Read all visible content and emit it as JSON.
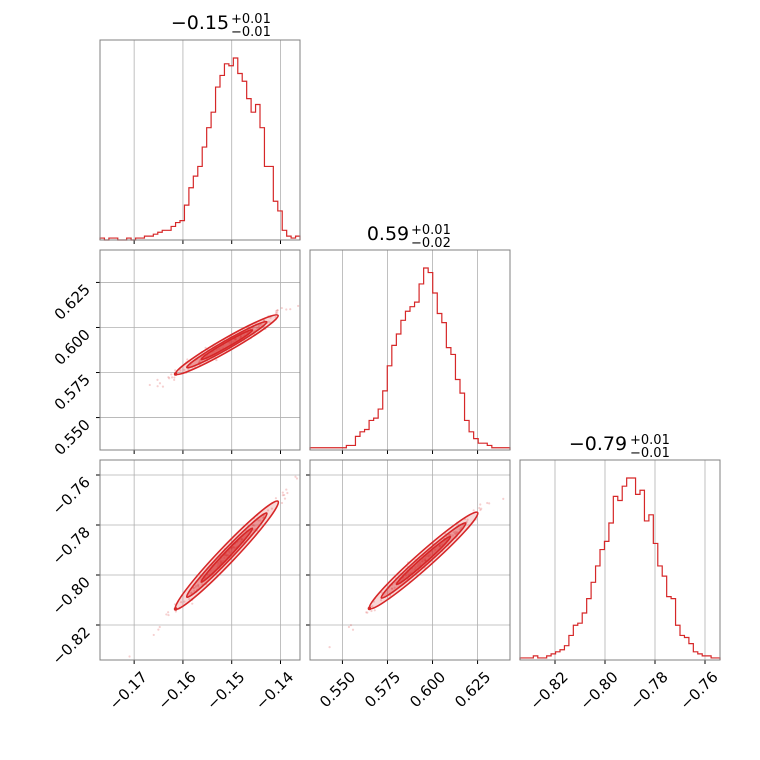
{
  "chart_data": {
    "type": "corner",
    "color": "#d62728",
    "parameters": [
      {
        "index": 0,
        "range": [
          -0.177,
          -0.136
        ],
        "ticks": [
          "-0.17",
          "-0.16",
          "-0.15",
          "-0.14"
        ],
        "tick_values": [
          -0.17,
          -0.16,
          -0.15,
          -0.14
        ],
        "title": {
          "median": "−0.15",
          "plus": "+0.01",
          "minus": "−0.01"
        }
      },
      {
        "index": 1,
        "range": [
          0.532,
          0.643
        ],
        "ticks": [
          "0.550",
          "0.575",
          "0.600",
          "0.625"
        ],
        "tick_values": [
          0.55,
          0.575,
          0.6,
          0.625
        ],
        "title": {
          "median": "0.59",
          "plus": "+0.01",
          "minus": "−0.02"
        }
      },
      {
        "index": 2,
        "range": [
          -0.834,
          -0.754
        ],
        "ticks": [
          "-0.82",
          "-0.80",
          "-0.78",
          "-0.76"
        ],
        "tick_values": [
          -0.82,
          -0.8,
          -0.78,
          -0.76
        ],
        "title": {
          "median": "−0.79",
          "plus": "+0.01",
          "minus": "−0.01"
        }
      }
    ],
    "tick_text": {
      "p0": [
        "−0.17",
        "−0.16",
        "−0.15",
        "−0.14"
      ],
      "p1": [
        "0.550",
        "0.575",
        "0.600",
        "0.625"
      ],
      "p2": [
        "−0.82",
        "−0.80",
        "−0.78",
        "−0.76"
      ]
    },
    "histograms": [
      {
        "param": 0,
        "counts": [
          1,
          0,
          1,
          1,
          0,
          0,
          1,
          0,
          1,
          1,
          2,
          2,
          3,
          4,
          5,
          5,
          7,
          9,
          10,
          18,
          27,
          33,
          38,
          48,
          58,
          66,
          79,
          85,
          91,
          90,
          94,
          86,
          82,
          73,
          66,
          70,
          58,
          38,
          38,
          20,
          15,
          5,
          2,
          1,
          2
        ]
      },
      {
        "param": 1,
        "counts": [
          1,
          1,
          1,
          1,
          1,
          1,
          1,
          1,
          2,
          2,
          6,
          8,
          9,
          13,
          14,
          18,
          26,
          37,
          46,
          51,
          57,
          61,
          63,
          65,
          73,
          80,
          78,
          69,
          60,
          56,
          45,
          42,
          31,
          25,
          13,
          8,
          5,
          3,
          3,
          2,
          1,
          1,
          1,
          1
        ]
      },
      {
        "param": 2,
        "counts": [
          1,
          1,
          1,
          2,
          1,
          1,
          2,
          3,
          4,
          5,
          7,
          12,
          17,
          18,
          23,
          30,
          38,
          46,
          54,
          58,
          67,
          80,
          78,
          85,
          89,
          89,
          81,
          83,
          68,
          71,
          57,
          46,
          41,
          31,
          30,
          17,
          12,
          11,
          8,
          4,
          3,
          2,
          2,
          1,
          1
        ]
      }
    ],
    "correlations": [
      {
        "x": 0,
        "y": 1,
        "slope": 1.55,
        "intercept": 0.8245,
        "contour_x_span": [
          -0.1615,
          -0.1405
        ]
      },
      {
        "x": 0,
        "y": 2,
        "slope": 2.05,
        "intercept": -0.4825,
        "contour_x_span": [
          -0.1615,
          -0.1405
        ]
      },
      {
        "x": 1,
        "y": 2,
        "slope": 0.64,
        "intercept": -1.175,
        "contour_x_span": [
          0.565,
          0.625
        ]
      }
    ]
  }
}
